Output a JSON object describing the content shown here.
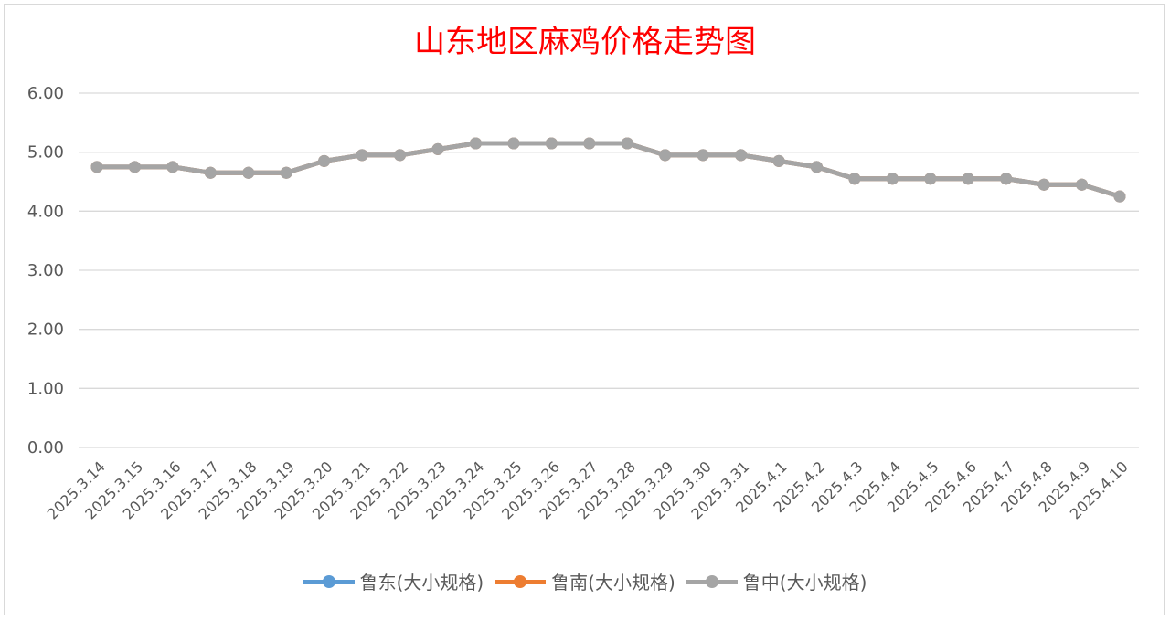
{
  "chart_data": {
    "type": "line",
    "title": "山东地区麻鸡价格走势图",
    "title_color": "#ff0000",
    "x": [
      "2025.3.14",
      "2025.3.15",
      "2025.3.16",
      "2025.3.17",
      "2025.3.18",
      "2025.3.19",
      "2025.3.20",
      "2025.3.21",
      "2025.3.22",
      "2025.3.23",
      "2025.3.24",
      "2025.3.25",
      "2025.3.26",
      "2025.3.27",
      "2025.3.28",
      "2025.3.29",
      "2025.3.30",
      "2025.3.31",
      "2025.4.1",
      "2025.4.2",
      "2025.4.3",
      "2025.4.4",
      "2025.4.5",
      "2025.4.6",
      "2025.4.7",
      "2025.4.8",
      "2025.4.9",
      "2025.4.10"
    ],
    "series": [
      {
        "name": "鲁东(大小规格)",
        "color": "#5b9bd5",
        "values": [
          4.75,
          4.75,
          4.75,
          4.65,
          4.65,
          4.65,
          4.85,
          4.95,
          4.95,
          5.05,
          5.15,
          5.15,
          5.15,
          5.15,
          5.15,
          4.95,
          4.95,
          4.95,
          4.85,
          4.75,
          4.55,
          4.55,
          4.55,
          4.55,
          4.55,
          4.45,
          4.45,
          4.25
        ]
      },
      {
        "name": "鲁南(大小规格)",
        "color": "#ed7d31",
        "values": [
          4.75,
          4.75,
          4.75,
          4.65,
          4.65,
          4.65,
          4.85,
          4.95,
          4.95,
          5.05,
          5.15,
          5.15,
          5.15,
          5.15,
          5.15,
          4.95,
          4.95,
          4.95,
          4.85,
          4.75,
          4.55,
          4.55,
          4.55,
          4.55,
          4.55,
          4.45,
          4.45,
          4.25
        ]
      },
      {
        "name": "鲁中(大小规格)",
        "color": "#a5a5a5",
        "values": [
          4.75,
          4.75,
          4.75,
          4.65,
          4.65,
          4.65,
          4.85,
          4.95,
          4.95,
          5.05,
          5.15,
          5.15,
          5.15,
          5.15,
          5.15,
          4.95,
          4.95,
          4.95,
          4.85,
          4.75,
          4.55,
          4.55,
          4.55,
          4.55,
          4.55,
          4.45,
          4.45,
          4.25
        ]
      }
    ],
    "ylim": [
      0,
      6
    ],
    "yticks": [
      "0.00",
      "1.00",
      "2.00",
      "3.00",
      "4.00",
      "5.00",
      "6.00"
    ],
    "grid": true,
    "legend": "bottom"
  }
}
